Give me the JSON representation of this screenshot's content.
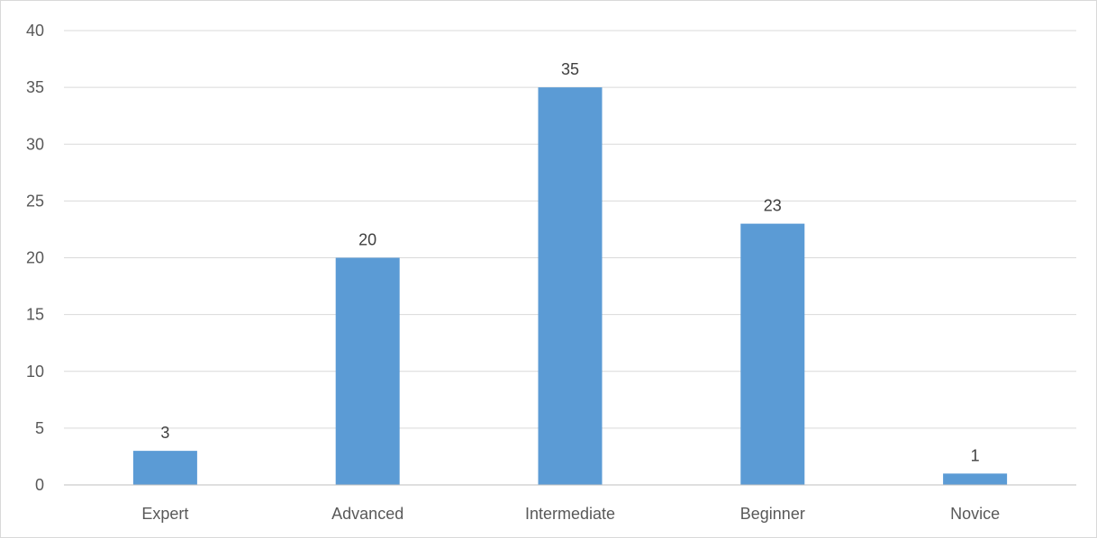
{
  "chart_data": {
    "type": "bar",
    "title": "",
    "xlabel": "",
    "ylabel": "",
    "categories": [
      "Expert",
      "Advanced",
      "Intermediate",
      "Beginner",
      "Novice"
    ],
    "values": [
      3,
      20,
      35,
      23,
      1
    ],
    "ylim": [
      0,
      40
    ],
    "yticks": [
      0,
      5,
      10,
      15,
      20,
      25,
      30,
      35,
      40
    ],
    "grid": true,
    "legend": "none",
    "data_labels": true,
    "bar_color": "#5b9bd5"
  }
}
